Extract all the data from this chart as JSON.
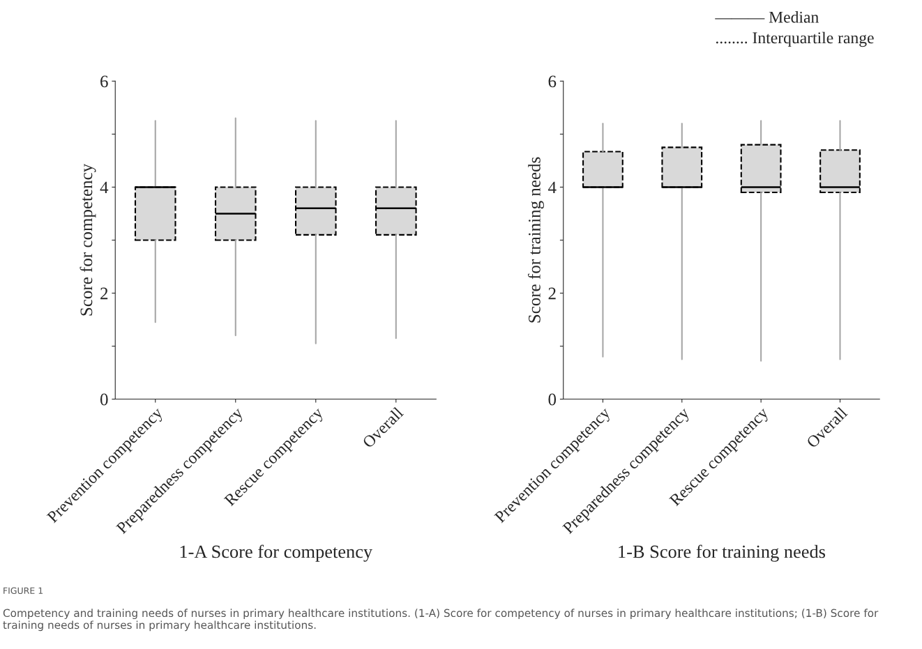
{
  "chart_data": [
    {
      "type": "box",
      "xlabel": "1-A Score for competency",
      "ylabel": "Score for competency",
      "color": "#d9d9d9",
      "categories": [
        "Prevention competency",
        "Preparedness competency",
        "Rescue competency",
        "Overall"
      ],
      "boxes": [
        {
          "low": 1.45,
          "q1": 3.0,
          "median": 4.0,
          "q3": 4.0,
          "high": 5.25
        },
        {
          "low": 1.2,
          "q1": 3.0,
          "median": 3.5,
          "q3": 4.0,
          "high": 5.3
        },
        {
          "low": 1.05,
          "q1": 3.1,
          "median": 3.6,
          "q3": 4.0,
          "high": 5.25
        },
        {
          "low": 1.15,
          "q1": 3.1,
          "median": 3.6,
          "q3": 4.0,
          "high": 5.25
        }
      ],
      "ylim": [
        0,
        6
      ],
      "yticks": [
        0,
        {
          "value": 1,
          "label": null
        },
        2,
        {
          "value": 3,
          "label": null
        },
        4,
        {
          "value": 5,
          "label": null
        },
        6
      ],
      "grid": false,
      "annotations": [
        "FIGURE 1",
        "Competency and training needs of nurses in primary healthcare institutions. (1-A) Score for competency of nurses in primary healthcare institutions; (1-B) Score for training needs of nurses in primary healthcare institutions."
      ]
    },
    {
      "type": "box",
      "xlabel": "1-B Score for training needs",
      "ylabel": "Score for training needs",
      "color": "#d9d9d9",
      "categories": [
        "Prevention competency",
        "Preparedness competency",
        "Rescue competency",
        "Overall"
      ],
      "boxes": [
        {
          "low": 0.8,
          "q1": 4.0,
          "median": 4.0,
          "q3": 4.67,
          "high": 5.2
        },
        {
          "low": 0.75,
          "q1": 4.0,
          "median": 4.0,
          "q3": 4.75,
          "high": 5.2
        },
        {
          "low": 0.72,
          "q1": 3.9,
          "median": 4.0,
          "q3": 4.8,
          "high": 5.25
        },
        {
          "low": 0.75,
          "q1": 3.9,
          "median": 4.0,
          "q3": 4.7,
          "high": 5.25
        }
      ],
      "ylim": [
        0,
        6
      ],
      "yticks": [
        0,
        {
          "value": 1,
          "label": null
        },
        2,
        {
          "value": 3,
          "label": null
        },
        4,
        {
          "value": 5,
          "label": null
        },
        6
      ],
      "grid": false,
      "annotations": [
        "——— Median",
        "........ Interquartile range"
      ]
    }
  ]
}
